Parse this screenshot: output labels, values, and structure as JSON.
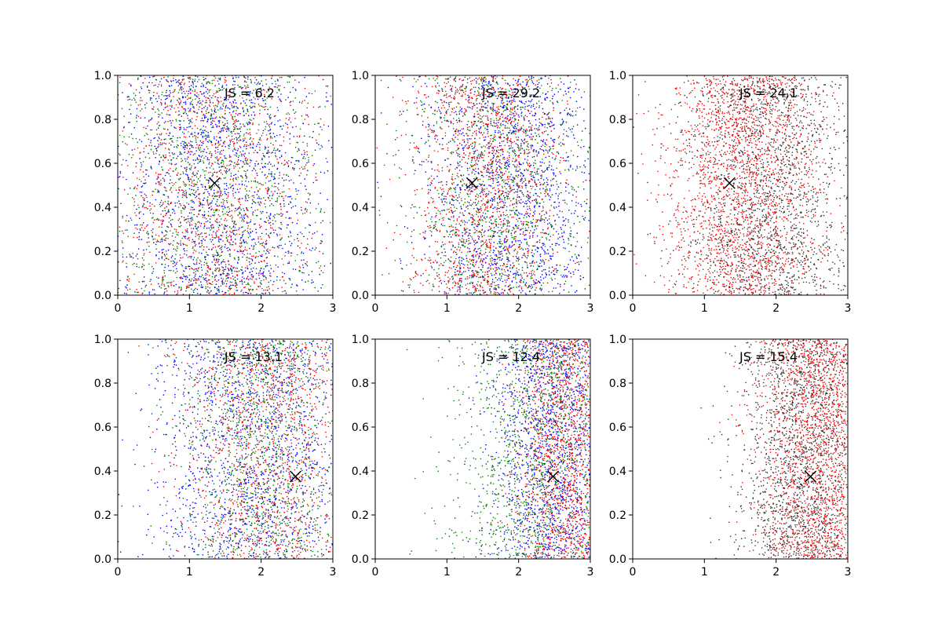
{
  "figure": {
    "panels": [
      {
        "annotation": "JS = 6.2"
      },
      {
        "annotation": "JS = 29.2"
      },
      {
        "annotation": "JS = 24.1"
      },
      {
        "annotation": "JS = 13.1"
      },
      {
        "annotation": "JS = 12.4"
      },
      {
        "annotation": "JS = 15.4"
      }
    ]
  },
  "chart_data": [
    {
      "type": "scatter",
      "title": "",
      "xlabel": "",
      "ylabel": "",
      "xlim": [
        0,
        3
      ],
      "ylim": [
        0,
        1
      ],
      "xticks": [
        "0",
        "1",
        "2",
        "3"
      ],
      "yticks": [
        "0.0",
        "0.2",
        "0.4",
        "0.6",
        "0.8",
        "1.0"
      ],
      "grid": false,
      "annotation": "JS = 6.2",
      "marker": {
        "x": 1.35,
        "y": 0.51,
        "symbol": "x"
      },
      "series": [
        {
          "color": "#0000ff",
          "point_count": 1600,
          "x_center": 1.4,
          "x_spread": 0.75,
          "x_range": [
            0,
            3
          ],
          "y_range": [
            0,
            1
          ]
        },
        {
          "color": "#ff0000",
          "point_count": 1200,
          "x_center": 1.35,
          "x_spread": 0.75,
          "x_range": [
            0,
            3
          ],
          "y_range": [
            0,
            1
          ]
        },
        {
          "color": "#008000",
          "point_count": 1200,
          "x_center": 1.35,
          "x_spread": 0.75,
          "x_range": [
            0,
            3
          ],
          "y_range": [
            0,
            1
          ]
        }
      ]
    },
    {
      "type": "scatter",
      "title": "",
      "xlabel": "",
      "ylabel": "",
      "xlim": [
        0,
        3
      ],
      "ylim": [
        0,
        1
      ],
      "xticks": [
        "0",
        "1",
        "2",
        "3"
      ],
      "yticks": [
        "0.0",
        "0.2",
        "0.4",
        "0.6",
        "0.8",
        "1.0"
      ],
      "grid": false,
      "annotation": "JS = 29.2",
      "marker": {
        "x": 1.35,
        "y": 0.51,
        "symbol": "x"
      },
      "series": [
        {
          "color": "#0000ff",
          "point_count": 1600,
          "x_center": 1.9,
          "x_spread": 0.6,
          "x_range": [
            0,
            3
          ],
          "y_range": [
            0,
            1
          ]
        },
        {
          "color": "#ff0000",
          "point_count": 1400,
          "x_center": 1.55,
          "x_spread": 0.55,
          "x_range": [
            0,
            3
          ],
          "y_range": [
            0,
            1
          ]
        },
        {
          "color": "#008000",
          "point_count": 1100,
          "x_center": 1.7,
          "x_spread": 0.6,
          "x_range": [
            0,
            3
          ],
          "y_range": [
            0,
            1
          ]
        }
      ]
    },
    {
      "type": "scatter",
      "title": "",
      "xlabel": "",
      "ylabel": "",
      "xlim": [
        0,
        3
      ],
      "ylim": [
        0,
        1
      ],
      "xticks": [
        "0",
        "1",
        "2",
        "3"
      ],
      "yticks": [
        "0.0",
        "0.2",
        "0.4",
        "0.6",
        "0.8",
        "1.0"
      ],
      "grid": false,
      "annotation": "JS = 24.1",
      "marker": {
        "x": 1.35,
        "y": 0.51,
        "symbol": "x"
      },
      "series": [
        {
          "color": "#ff0000",
          "point_count": 2000,
          "x_center": 1.5,
          "x_spread": 0.55,
          "x_range": [
            0,
            3
          ],
          "y_range": [
            0,
            1
          ]
        },
        {
          "color": "#333333",
          "point_count": 1800,
          "x_center": 1.9,
          "x_spread": 0.6,
          "x_range": [
            0,
            3
          ],
          "y_range": [
            0,
            1
          ]
        }
      ]
    },
    {
      "type": "scatter",
      "title": "",
      "xlabel": "",
      "ylabel": "",
      "xlim": [
        0,
        3
      ],
      "ylim": [
        0,
        1
      ],
      "xticks": [
        "0",
        "1",
        "2",
        "3"
      ],
      "yticks": [
        "0.0",
        "0.2",
        "0.4",
        "0.6",
        "0.8",
        "1.0"
      ],
      "grid": false,
      "annotation": "JS = 13.1",
      "marker": {
        "x": 2.48,
        "y": 0.375,
        "symbol": "x"
      },
      "series": [
        {
          "color": "#0000ff",
          "point_count": 1600,
          "x_center": 1.9,
          "x_spread": 0.75,
          "x_range": [
            0,
            3
          ],
          "y_range": [
            0,
            1
          ]
        },
        {
          "color": "#ff0000",
          "point_count": 1200,
          "x_center": 2.1,
          "x_spread": 0.6,
          "x_range": [
            0,
            3
          ],
          "y_range": [
            0,
            1
          ]
        },
        {
          "color": "#008000",
          "point_count": 1200,
          "x_center": 2.0,
          "x_spread": 0.6,
          "x_range": [
            0,
            3
          ],
          "y_range": [
            0,
            1
          ]
        }
      ]
    },
    {
      "type": "scatter",
      "title": "",
      "xlabel": "",
      "ylabel": "",
      "xlim": [
        0,
        3
      ],
      "ylim": [
        0,
        1
      ],
      "xticks": [
        "0",
        "1",
        "2",
        "3"
      ],
      "yticks": [
        "0.0",
        "0.2",
        "0.4",
        "0.6",
        "0.8",
        "1.0"
      ],
      "grid": false,
      "annotation": "JS = 12.4",
      "marker": {
        "x": 2.48,
        "y": 0.375,
        "symbol": "x"
      },
      "series": [
        {
          "color": "#0000ff",
          "point_count": 1600,
          "x_center": 2.5,
          "x_spread": 0.45,
          "x_range": [
            0,
            3
          ],
          "y_range": [
            0,
            1
          ]
        },
        {
          "color": "#ff0000",
          "point_count": 1500,
          "x_center": 2.7,
          "x_spread": 0.35,
          "x_range": [
            0,
            3
          ],
          "y_range": [
            0,
            1
          ]
        },
        {
          "color": "#008000",
          "point_count": 1200,
          "x_center": 2.2,
          "x_spread": 0.55,
          "x_range": [
            0,
            3
          ],
          "y_range": [
            0,
            1
          ]
        }
      ]
    },
    {
      "type": "scatter",
      "title": "",
      "xlabel": "",
      "ylabel": "",
      "xlim": [
        0,
        3
      ],
      "ylim": [
        0,
        1
      ],
      "xticks": [
        "0",
        "1",
        "2",
        "3"
      ],
      "yticks": [
        "0.0",
        "0.2",
        "0.4",
        "0.6",
        "0.8",
        "1.0"
      ],
      "grid": false,
      "annotation": "JS = 15.4",
      "marker": {
        "x": 2.48,
        "y": 0.375,
        "symbol": "x"
      },
      "series": [
        {
          "color": "#ff0000",
          "point_count": 2000,
          "x_center": 2.6,
          "x_spread": 0.4,
          "x_range": [
            0,
            3
          ],
          "y_range": [
            0,
            1
          ]
        },
        {
          "color": "#333333",
          "point_count": 1700,
          "x_center": 2.35,
          "x_spread": 0.45,
          "x_range": [
            0,
            3
          ],
          "y_range": [
            0,
            1
          ]
        }
      ]
    }
  ]
}
